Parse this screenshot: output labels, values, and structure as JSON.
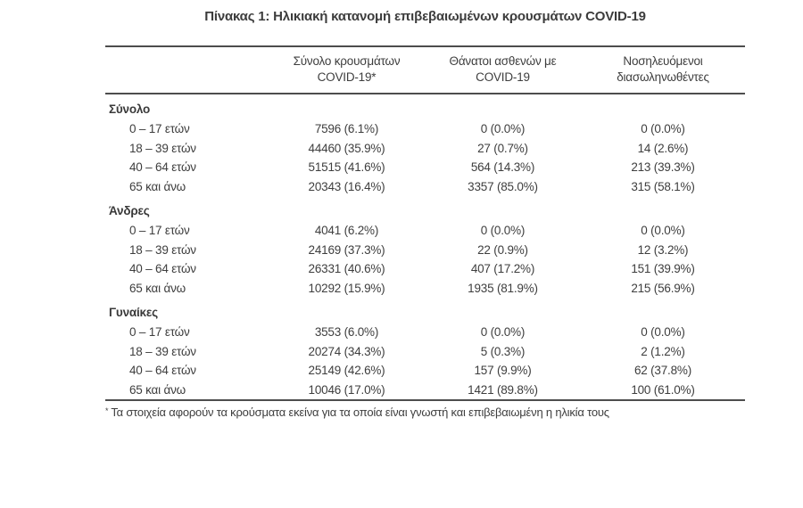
{
  "title": "Πίνακας 1: Ηλικιακή κατανομή επιβεβαιωμένων κρουσμάτων COVID-19",
  "colors": {
    "text": "#3e3e3e",
    "rule": "#4d4d4d",
    "background": "#ffffff"
  },
  "table": {
    "columns": [
      {
        "line1": "Σύνολο κρουσμάτων",
        "line2": "COVID-19*"
      },
      {
        "line1": "Θάνατοι ασθενών με",
        "line2": "COVID-19"
      },
      {
        "line1": "Νοσηλευόμενοι",
        "line2": "διασωληνωθέντες"
      }
    ],
    "sections": [
      {
        "label": "Σύνολο",
        "rows": [
          {
            "age": "0 – 17 ετών",
            "cases": "7596 (6.1%)",
            "deaths": "0 (0.0%)",
            "intubated": "0 (0.0%)"
          },
          {
            "age": "18 – 39 ετών",
            "cases": "44460 (35.9%)",
            "deaths": "27 (0.7%)",
            "intubated": "14 (2.6%)"
          },
          {
            "age": "40 – 64 ετών",
            "cases": "51515 (41.6%)",
            "deaths": "564 (14.3%)",
            "intubated": "213 (39.3%)"
          },
          {
            "age": "65 και άνω",
            "cases": "20343 (16.4%)",
            "deaths": "3357 (85.0%)",
            "intubated": "315 (58.1%)"
          }
        ]
      },
      {
        "label": "Άνδρες",
        "rows": [
          {
            "age": "0 – 17 ετών",
            "cases": "4041 (6.2%)",
            "deaths": "0 (0.0%)",
            "intubated": "0 (0.0%)"
          },
          {
            "age": "18 – 39 ετών",
            "cases": "24169 (37.3%)",
            "deaths": "22 (0.9%)",
            "intubated": "12 (3.2%)"
          },
          {
            "age": "40 – 64 ετών",
            "cases": "26331 (40.6%)",
            "deaths": "407 (17.2%)",
            "intubated": "151 (39.9%)"
          },
          {
            "age": "65 και άνω",
            "cases": "10292 (15.9%)",
            "deaths": "1935 (81.9%)",
            "intubated": "215 (56.9%)"
          }
        ]
      },
      {
        "label": "Γυναίκες",
        "rows": [
          {
            "age": "0 – 17 ετών",
            "cases": "3553 (6.0%)",
            "deaths": "0 (0.0%)",
            "intubated": "0 (0.0%)"
          },
          {
            "age": "18 – 39 ετών",
            "cases": "20274 (34.3%)",
            "deaths": "5 (0.3%)",
            "intubated": "2 (1.2%)"
          },
          {
            "age": "40 – 64 ετών",
            "cases": "25149 (42.6%)",
            "deaths": "157 (9.9%)",
            "intubated": "62 (37.8%)"
          },
          {
            "age": "65 και άνω",
            "cases": "10046 (17.0%)",
            "deaths": "1421 (89.8%)",
            "intubated": "100 (61.0%)"
          }
        ]
      }
    ]
  },
  "footnote": {
    "marker": "*",
    "text": "Τα στοιχεία αφορούν τα κρούσματα εκείνα για τα οποία είναι γνωστή και επιβεβαιωμένη η ηλικία τους"
  }
}
